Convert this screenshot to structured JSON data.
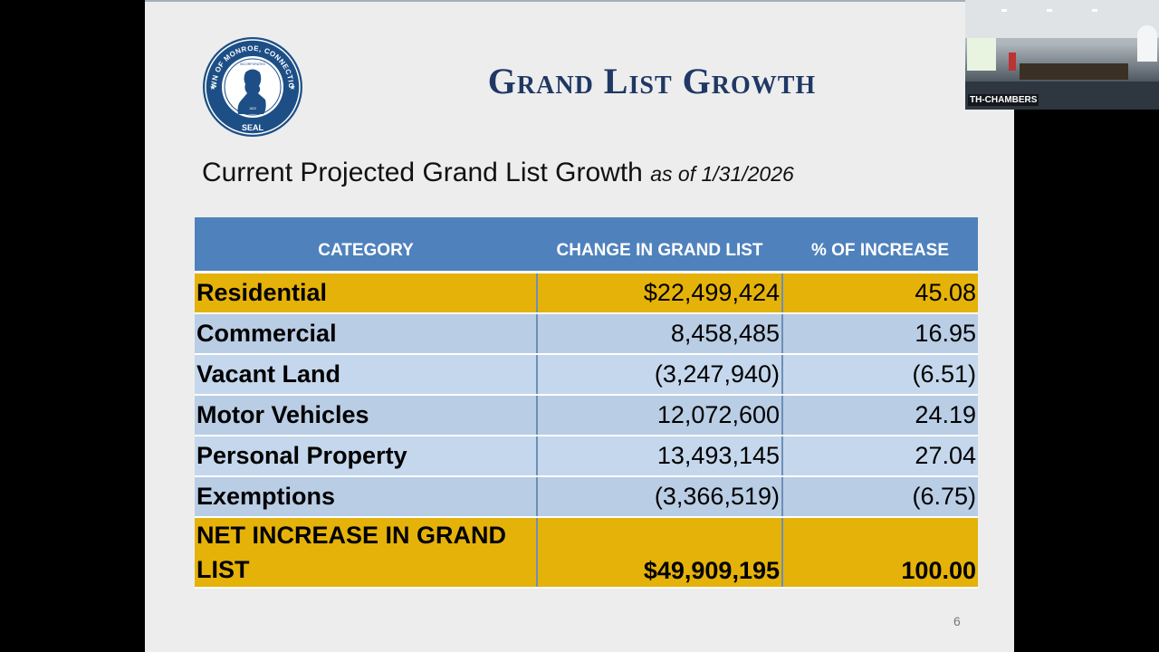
{
  "slide": {
    "title": "Grand List Growth",
    "subtitle": "Current Projected Grand List Growth",
    "subtitle_asof": "as of 1/31/2026",
    "page_number": "6",
    "seal": {
      "top_text": "TOWN OF MONROE, CONNECTICUT",
      "inner_text": "INCORPORATED",
      "year": "1823",
      "bottom_text": "SEAL"
    }
  },
  "table": {
    "headers": [
      "CATEGORY",
      "CHANGE IN GRAND LIST",
      "% OF INCREASE"
    ],
    "rows": [
      {
        "category": "Residential",
        "change": "$22,499,424",
        "pct": "45.08"
      },
      {
        "category": "Commercial",
        "change": "8,458,485",
        "pct": "16.95"
      },
      {
        "category": "Vacant Land",
        "change": "(3,247,940)",
        "pct": "(6.51)"
      },
      {
        "category": "Motor Vehicles",
        "change": "12,072,600",
        "pct": "24.19"
      },
      {
        "category": "Personal Property",
        "change": "13,493,145",
        "pct": "27.04"
      },
      {
        "category": "Exemptions",
        "change": "(3,366,519)",
        "pct": "(6.75)"
      }
    ],
    "total": {
      "category": "NET INCREASE IN GRAND LIST",
      "change": "$49,909,195",
      "pct": "100.00"
    }
  },
  "camera": {
    "label": "TH-CHAMBERS"
  },
  "colors": {
    "title": "#1f3864",
    "header_bg": "#4f81bd",
    "highlight": "#e5b209",
    "row_bg": "#c5d7ec"
  }
}
